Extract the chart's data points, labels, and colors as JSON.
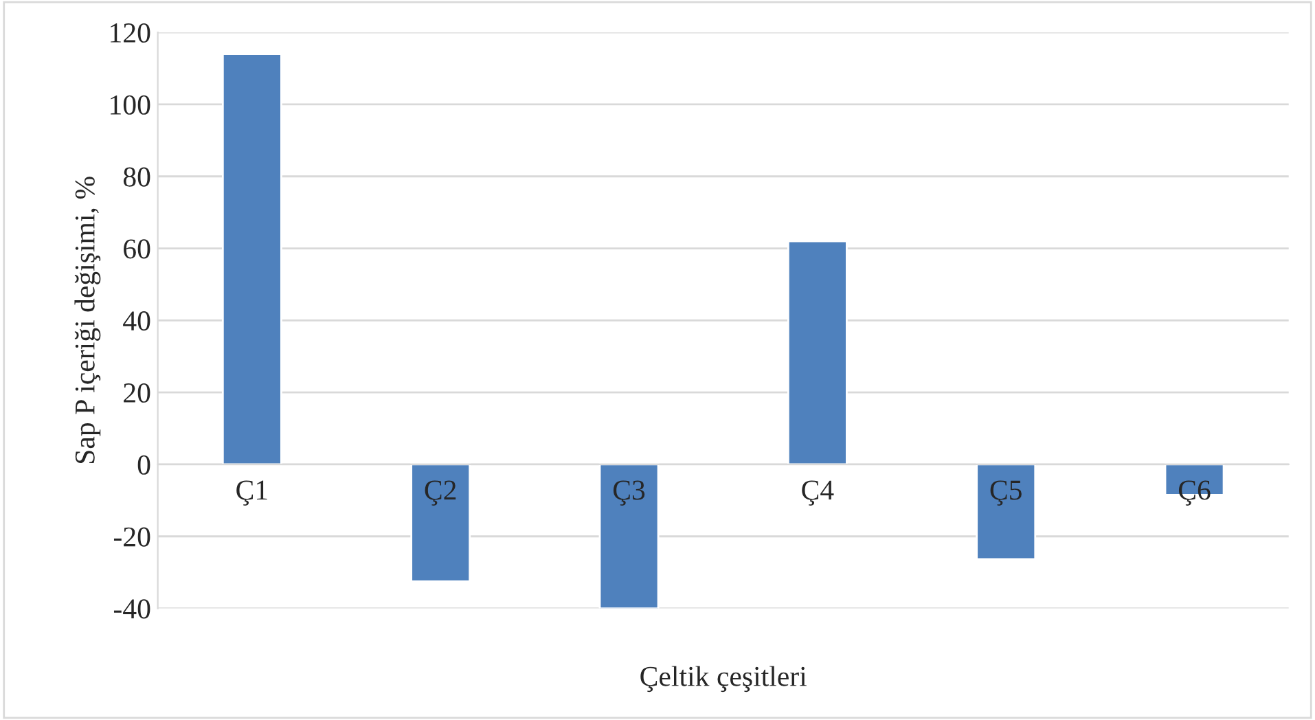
{
  "chart_data": {
    "type": "bar",
    "xlabel": "Çeltik çeşitleri",
    "ylabel": "Sap P içeriği değişimi, %",
    "categories": [
      "Ç1",
      "Ç2",
      "Ç3",
      "Ç4",
      "Ç5",
      "Ç6"
    ],
    "values": [
      114,
      -32.5,
      -40,
      62,
      -26.3,
      -8.5
    ],
    "color": "#4f81bd",
    "ylim": [
      -40,
      120
    ],
    "yticks": [
      -40,
      -20,
      0,
      20,
      40,
      60,
      80,
      100,
      120
    ],
    "grid": "y",
    "legend": false
  }
}
